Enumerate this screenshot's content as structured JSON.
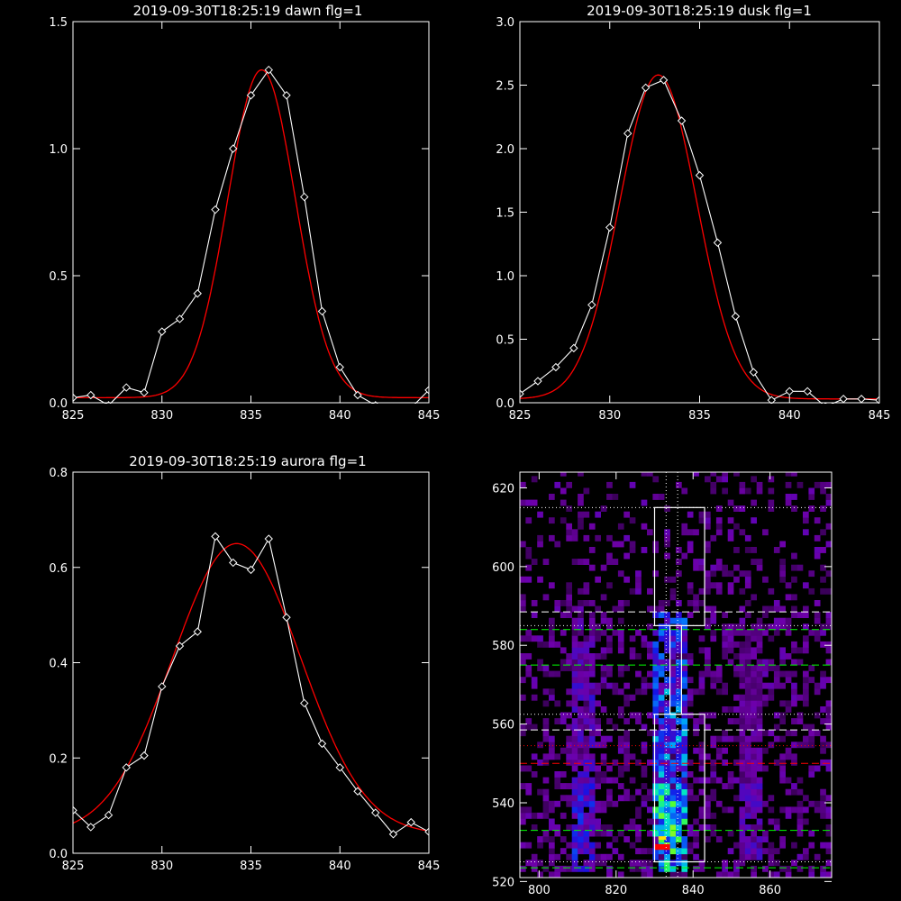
{
  "chart_data": [
    {
      "type": "line",
      "title": "2019-09-30T18:25:19 dawn flg=1",
      "xlim": [
        825,
        845
      ],
      "ylim": [
        0,
        1.5
      ],
      "xticks": [
        "825",
        "830",
        "835",
        "840",
        "845"
      ],
      "xtick_values": [
        825,
        830,
        835,
        840,
        845
      ],
      "yticks": [
        "0.0",
        "0.5",
        "1.0",
        "1.5"
      ],
      "ytick_values": [
        0,
        0.5,
        1.0,
        1.5
      ],
      "series": [
        {
          "color": "#ffffff",
          "marker": "diamond",
          "x": [
            825,
            826,
            827,
            828,
            829,
            830,
            831,
            832,
            833,
            834,
            835,
            836,
            837,
            838,
            839,
            840,
            841,
            842,
            843,
            844,
            845
          ],
          "y": [
            0.02,
            0.03,
            -0.01,
            0.06,
            0.04,
            0.28,
            0.33,
            0.43,
            0.76,
            1.0,
            1.21,
            1.31,
            1.21,
            0.81,
            0.36,
            0.14,
            0.03,
            -0.01,
            -0.02,
            -0.02,
            0.05
          ]
        },
        {
          "color": "#ff0000",
          "marker": "none",
          "gaussian": {
            "amplitude": 1.29,
            "center": 835.6,
            "sigma": 1.9,
            "offset": 0.02
          }
        }
      ]
    },
    {
      "type": "line",
      "title": "2019-09-30T18:25:19 dusk flg=1",
      "xlim": [
        825,
        845
      ],
      "ylim": [
        0,
        3.0
      ],
      "xticks": [
        "825",
        "830",
        "835",
        "840",
        "845"
      ],
      "xtick_values": [
        825,
        830,
        835,
        840,
        845
      ],
      "yticks": [
        "0.0",
        "0.5",
        "1.0",
        "1.5",
        "2.0",
        "2.5",
        "3.0"
      ],
      "ytick_values": [
        0,
        0.5,
        1.0,
        1.5,
        2.0,
        2.5,
        3.0
      ],
      "series": [
        {
          "color": "#ffffff",
          "marker": "diamond",
          "x": [
            825,
            826,
            827,
            828,
            829,
            830,
            831,
            832,
            833,
            834,
            835,
            836,
            837,
            838,
            839,
            840,
            841,
            842,
            843,
            844,
            845
          ],
          "y": [
            0.07,
            0.17,
            0.28,
            0.43,
            0.77,
            1.38,
            2.12,
            2.48,
            2.54,
            2.22,
            1.79,
            1.26,
            0.68,
            0.24,
            0.02,
            0.09,
            0.09,
            -0.03,
            0.03,
            0.03,
            0.02
          ]
        },
        {
          "color": "#ff0000",
          "marker": "none",
          "gaussian": {
            "amplitude": 2.55,
            "center": 832.7,
            "sigma": 2.15,
            "offset": 0.03
          }
        }
      ]
    },
    {
      "type": "line",
      "title": "2019-09-30T18:25:19 aurora flg=1",
      "xlim": [
        825,
        845
      ],
      "ylim": [
        0,
        0.8
      ],
      "xticks": [
        "825",
        "830",
        "835",
        "840",
        "845"
      ],
      "xtick_values": [
        825,
        830,
        835,
        840,
        845
      ],
      "yticks": [
        "0.0",
        "0.2",
        "0.4",
        "0.6",
        "0.8"
      ],
      "ytick_values": [
        0,
        0.2,
        0.4,
        0.6,
        0.8
      ],
      "series": [
        {
          "color": "#ffffff",
          "marker": "diamond",
          "x": [
            825,
            826,
            827,
            828,
            829,
            830,
            831,
            832,
            833,
            834,
            835,
            836,
            837,
            838,
            839,
            840,
            841,
            842,
            843,
            844,
            845
          ],
          "y": [
            0.09,
            0.055,
            0.08,
            0.18,
            0.205,
            0.35,
            0.435,
            0.465,
            0.665,
            0.61,
            0.595,
            0.66,
            0.495,
            0.315,
            0.23,
            0.18,
            0.13,
            0.085,
            0.04,
            0.065,
            0.045
          ]
        },
        {
          "color": "#ff0000",
          "marker": "none",
          "gaussian": {
            "amplitude": 0.61,
            "center": 834.2,
            "sigma": 3.6,
            "offset": 0.04
          }
        }
      ]
    },
    {
      "type": "heatmap",
      "title": "",
      "xlim": [
        795,
        876
      ],
      "ylim": [
        521,
        624
      ],
      "xticks": [
        "800",
        "820",
        "840",
        "860"
      ],
      "xtick_values": [
        800,
        820,
        840,
        860
      ],
      "yticks": [
        "520",
        "540",
        "560",
        "580",
        "600",
        "620"
      ],
      "ytick_values": [
        520,
        540,
        560,
        580,
        600,
        620
      ],
      "emission_columns": [
        {
          "x_range": [
            808,
            813
          ],
          "y_range": [
            522,
            586
          ],
          "strength": 0.45
        },
        {
          "x_range": [
            829,
            838
          ],
          "y_range": [
            522,
            588
          ],
          "strength": 0.85
        },
        {
          "x_range": [
            851,
            857
          ],
          "y_range": [
            525,
            585
          ],
          "strength": 0.3
        }
      ],
      "white_boxes": [
        {
          "x_range": [
            830,
            843
          ],
          "y_range": [
            585,
            615
          ]
        },
        {
          "x_range": [
            830,
            843
          ],
          "y_range": [
            525,
            562.5
          ]
        },
        {
          "x_range": [
            834,
            837
          ],
          "y_range": [
            562.5,
            585
          ]
        }
      ],
      "vertical_dotted_lines": [
        833,
        836
      ],
      "horizontal_lines": [
        {
          "y": 615,
          "color": "#ffffff",
          "style": "dotted"
        },
        {
          "y": 588.5,
          "color": "#ffffff",
          "style": "dashed"
        },
        {
          "y": 585,
          "color": "#ffffff",
          "style": "dotted"
        },
        {
          "y": 584,
          "color": "#00ff00",
          "style": "dashed"
        },
        {
          "y": 575,
          "color": "#00ff00",
          "style": "dashed"
        },
        {
          "y": 562.5,
          "color": "#ffffff",
          "style": "dotted"
        },
        {
          "y": 558.5,
          "color": "#ffffff",
          "style": "dashed"
        },
        {
          "y": 554.5,
          "color": "#ff0000",
          "style": "dotted"
        },
        {
          "y": 550,
          "color": "#ff0000",
          "style": "dashed"
        },
        {
          "y": 533,
          "color": "#00ff00",
          "style": "dashed"
        },
        {
          "y": 525,
          "color": "#ffffff",
          "style": "dotted"
        },
        {
          "y": 523.5,
          "color": "#00ff00",
          "style": "dashed"
        }
      ],
      "peak_marker": {
        "x": 832,
        "y": 528.5,
        "color": "#ff0000"
      }
    }
  ]
}
